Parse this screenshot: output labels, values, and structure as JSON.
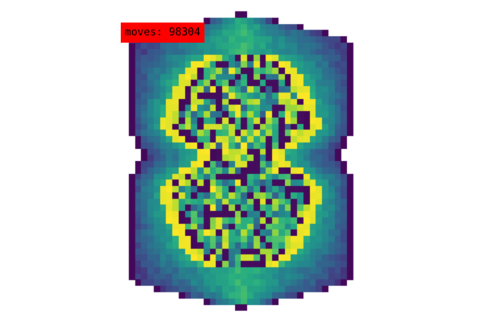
{
  "status": {
    "moves_label": "moves: 98304",
    "moves_count": 98304,
    "badge_color": "#ff0000"
  },
  "palette": {
    "name": "viridis",
    "background": "#ffffff",
    "stops": [
      "#440154",
      "#472d7b",
      "#3b528b",
      "#2c728e",
      "#21918c",
      "#28ae80",
      "#5ec962",
      "#addc30",
      "#fde725"
    ]
  },
  "grid": {
    "description_kind": "cell-automaton heat map",
    "shape": "two lobes joined at a narrow waist",
    "value_range": [
      0,
      1
    ]
  }
}
